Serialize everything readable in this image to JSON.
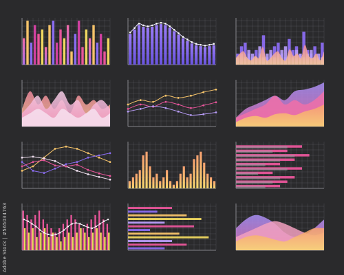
{
  "watermark": "Adobe Stock | #565034763",
  "colors": {
    "background": "#2a2a2c",
    "grid": "#6a6a70",
    "gold": "#f5c36a",
    "yellow": "#f0d860",
    "pink": "#e8559a",
    "magenta": "#d040a0",
    "violet": "#8a6cf0",
    "lavender": "#b89cf8",
    "peach": "#f7a888",
    "rose": "#f4b0c8"
  },
  "chart_data": [
    {
      "type": "bar",
      "series": [
        {
          "name": "",
          "values": [
            6,
            10,
            5,
            9,
            7,
            8,
            4,
            9,
            10,
            5,
            8,
            6,
            9,
            3,
            7,
            10,
            4,
            8,
            6,
            9,
            5,
            7,
            3,
            6
          ]
        }
      ],
      "ylim": [
        0,
        10
      ],
      "grid": true
    },
    {
      "type": "bar",
      "series": [
        {
          "name": "",
          "values": [
            7,
            8,
            9,
            8.6,
            8.4,
            8.6,
            9,
            9.2,
            9,
            8.4,
            7.6,
            6.8,
            6,
            5.4,
            4.8,
            4.4,
            4.2,
            4,
            4.2,
            4.4
          ]
        }
      ],
      "ylim": [
        0,
        10
      ],
      "grid": true
    },
    {
      "type": "bar",
      "series": [
        {
          "name": "",
          "values": [
            3,
            5,
            6,
            3,
            2,
            4,
            3,
            8,
            2,
            3,
            5,
            6,
            3,
            2,
            7,
            4,
            5,
            3,
            9,
            4,
            3,
            5,
            2,
            6
          ]
        },
        {
          "name": "",
          "values": [
            2,
            3,
            2,
            4,
            3,
            2,
            5,
            2,
            3,
            4,
            2,
            3,
            4,
            5,
            3,
            2,
            4,
            3,
            2,
            3,
            4,
            2,
            3,
            2
          ]
        }
      ],
      "ylim": [
        0,
        12
      ],
      "grid": true
    },
    {
      "type": "area",
      "series": [
        {
          "name": "",
          "values": [
            4,
            8,
            5,
            7,
            4,
            6,
            3,
            7,
            5,
            6,
            4,
            5
          ]
        },
        {
          "name": "",
          "values": [
            3,
            5,
            7,
            4,
            6,
            8,
            5,
            6,
            3,
            5,
            6,
            4
          ]
        },
        {
          "name": "",
          "values": [
            2,
            3,
            4,
            3,
            2,
            4,
            3,
            2,
            3,
            4,
            2,
            3
          ]
        }
      ],
      "ylim": [
        0,
        10
      ],
      "grid": true
    },
    {
      "type": "line",
      "series": [
        {
          "name": "",
          "values": [
            5,
            6,
            5.6,
            7,
            6.5,
            7,
            7.8,
            8.4
          ]
        },
        {
          "name": "",
          "values": [
            4,
            5,
            4.5,
            5.6,
            5,
            4.2,
            4.8,
            5.5
          ]
        },
        {
          "name": "",
          "values": [
            3.4,
            4,
            4.6,
            4.2,
            3.4,
            2.6,
            2.8,
            3.2
          ]
        }
      ],
      "ylim": [
        0,
        10
      ],
      "grid": true
    },
    {
      "type": "area",
      "series": [
        {
          "name": "",
          "values": [
            2,
            4,
            5,
            6,
            7,
            6,
            8,
            8.4,
            9,
            10
          ]
        },
        {
          "name": "",
          "values": [
            2,
            3,
            4,
            5,
            7,
            5,
            6,
            5,
            6,
            8
          ]
        },
        {
          "name": "",
          "values": [
            1,
            2,
            2.4,
            2,
            2.8,
            3,
            2.6,
            3.4,
            4,
            5
          ]
        }
      ],
      "ylim": [
        0,
        10
      ],
      "grid": true
    },
    {
      "type": "line",
      "series": [
        {
          "name": "",
          "values": [
            4,
            5,
            7,
            9,
            9.5,
            9,
            8,
            7,
            6
          ]
        },
        {
          "name": "",
          "values": [
            6,
            4,
            3.5,
            4.5,
            5.5,
            6,
            7,
            7.5,
            8
          ]
        },
        {
          "name": "",
          "values": [
            7,
            7.2,
            6.8,
            6.2,
            5,
            4,
            3.2,
            2.6,
            2
          ]
        },
        {
          "name": "",
          "values": [
            5,
            6,
            6.4,
            5.2,
            5,
            5.4,
            4.2,
            3.4,
            2.8
          ]
        }
      ],
      "ylim": [
        0,
        10
      ],
      "grid": true
    },
    {
      "type": "bar",
      "series": [
        {
          "name": "",
          "values": [
            2,
            3,
            4,
            5,
            9,
            10,
            6,
            3,
            4,
            2,
            3,
            5,
            2,
            1,
            2,
            4,
            6,
            3,
            4,
            8,
            9,
            10,
            7,
            4,
            3,
            2
          ]
        }
      ],
      "ylim": [
        0,
        12
      ],
      "grid": true
    },
    {
      "type": "bar",
      "orientation": "horizontal",
      "series": [
        {
          "name": "",
          "values": [
            9,
            7,
            10,
            8,
            6,
            9,
            5,
            8,
            7,
            6
          ]
        },
        {
          "name": "",
          "values": [
            7,
            5,
            8,
            6,
            4,
            7,
            3,
            6,
            5,
            4
          ]
        }
      ],
      "xlim": [
        0,
        12
      ],
      "grid": true
    },
    {
      "type": "bar",
      "series": [
        {
          "name": "",
          "values": [
            9,
            8,
            7,
            8,
            9,
            7,
            6,
            5,
            4,
            5,
            6,
            7,
            8,
            7,
            6,
            5,
            6,
            7,
            8,
            9,
            7,
            6
          ]
        },
        {
          "name": "",
          "values": [
            5,
            4,
            5,
            3,
            4,
            5,
            3,
            4,
            3,
            2,
            3,
            4,
            3,
            4,
            5,
            4,
            3,
            4,
            5,
            4,
            3,
            4
          ]
        }
      ],
      "line": [
        7,
        6.6,
        6,
        5.4,
        4.6,
        4,
        3.6,
        3.4,
        3.6,
        4,
        4.6,
        5.4,
        6,
        6.2,
        6,
        5.6,
        5.2,
        5,
        5.4,
        6,
        6.6,
        7
      ],
      "ylim": [
        0,
        10
      ],
      "grid": true
    },
    {
      "type": "bar",
      "orientation": "horizontal",
      "series": [
        {
          "name": "",
          "values": [
            6,
            4,
            8,
            10,
            5,
            9,
            3,
            7,
            11,
            6,
            8,
            5
          ]
        }
      ],
      "xlim": [
        0,
        12
      ],
      "grid": true
    },
    {
      "type": "area",
      "series": [
        {
          "name": "",
          "values": [
            5,
            7,
            8,
            7.4,
            6,
            4,
            3,
            3.5,
            5,
            7
          ]
        },
        {
          "name": "",
          "values": [
            3,
            4,
            5,
            6,
            6.6,
            6,
            5,
            4,
            3.4,
            4
          ]
        },
        {
          "name": "",
          "values": [
            2,
            3,
            3.4,
            3,
            2.4,
            2,
            3,
            4,
            5,
            5
          ]
        }
      ],
      "ylim": [
        0,
        10
      ],
      "grid": true
    }
  ]
}
